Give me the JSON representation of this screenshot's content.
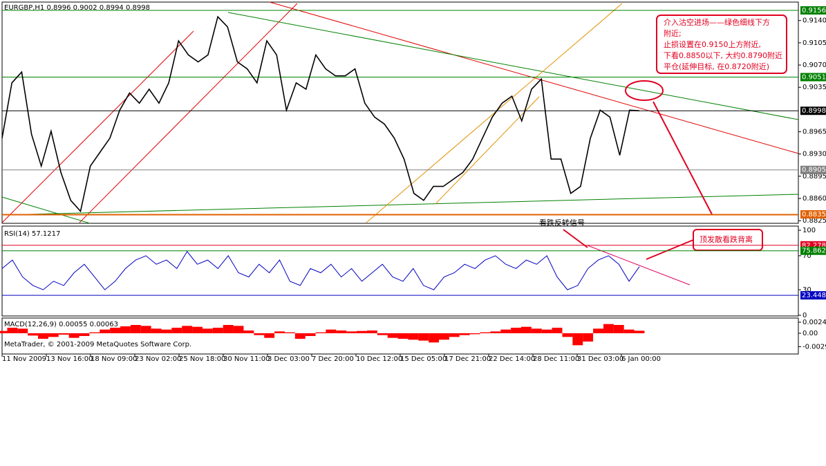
{
  "header": {
    "symbol_line": "EURGBP,H1  0.8996 0.9002 0.8994 0.8998"
  },
  "footer": "MetaTrader, © 2001-2009 MetaQuotes Software Corp.",
  "x_labels": [
    "11 Nov 2009",
    "13 Nov 16:00",
    "18 Nov 09:00",
    "23 Nov 02:00",
    "25 Nov 18:00",
    "30 Nov 11:00",
    "3 Dec 03:00",
    "7 Dec 20:00",
    "10 Dec 12:00",
    "15 Dec 05:00",
    "17 Dec 21:00",
    "22 Dec 14:00",
    "28 Dec 11:00",
    "31 Dec 03:00",
    "6 Jan 00:00"
  ],
  "annotations": {
    "trade_plan": [
      "介入沽空进场——绿色细线下方",
      "附近;",
      "止损设置在0.9150上方附近,",
      "下看0.8850以下, 大约0.8790附近",
      "平仓(延伸目标, 在0.8720附近)"
    ],
    "reversal_signal": "看跌反转信号",
    "divergence": "顶发散看跌背离"
  },
  "chart_data": [
    {
      "type": "line",
      "color": "#000000",
      "values": [
        0.8955,
        0.9042,
        0.9059,
        0.8961,
        0.8911,
        0.8966,
        0.8901,
        0.8857,
        0.884,
        0.8911,
        0.8933,
        0.8955,
        0.8999,
        0.9026,
        0.901,
        0.9032,
        0.901,
        0.9042,
        0.9108,
        0.9086,
        0.9075,
        0.9086,
        0.9146,
        0.913,
        0.9075,
        0.9064,
        0.9042,
        0.9108,
        0.9086,
        0.8999,
        0.9042,
        0.9032,
        0.9086,
        0.9064,
        0.9053,
        0.9053,
        0.9064,
        0.901,
        0.8988,
        0.8977,
        0.8955,
        0.8922,
        0.8868,
        0.8857,
        0.8879,
        0.8879,
        0.889,
        0.8901,
        0.8922,
        0.8955,
        0.8988,
        0.901,
        0.9021,
        0.8982,
        0.9032,
        0.9048,
        0.8922,
        0.8922,
        0.8868,
        0.8879,
        0.8955,
        0.8999,
        0.8988,
        0.8928,
        0.8999,
        0.8998
      ],
      "ylim": [
        0.8822,
        0.9168
      ],
      "yticks": [
        {
          "value": 0.914,
          "label": "0.9140"
        },
        {
          "value": 0.9105,
          "label": "0.9105"
        },
        {
          "value": 0.907,
          "label": "0.9070"
        },
        {
          "value": 0.9035,
          "label": "0.9035"
        },
        {
          "value": 0.8965,
          "label": "0.8965"
        },
        {
          "value": 0.893,
          "label": "0.8930"
        },
        {
          "value": 0.8895,
          "label": "0.8895"
        },
        {
          "value": 0.886,
          "label": "0.8860"
        },
        {
          "value": 0.8825,
          "label": "0.8825"
        }
      ],
      "levels": [
        {
          "value": 0.9156,
          "label": "0.9156",
          "color": "#008000"
        },
        {
          "value": 0.9051,
          "label": "0.9051",
          "color": "#008000"
        },
        {
          "value": 0.8998,
          "label": "0.8998",
          "color": "#000000"
        },
        {
          "value": 0.8905,
          "label": "0.8905",
          "color": "#808080"
        },
        {
          "value": 0.8835,
          "label": "0.8835",
          "color": "#e06000"
        }
      ]
    },
    {
      "type": "line",
      "title": "RSI(14) 57.1217",
      "color": "#0000c0",
      "values": [
        55,
        65,
        45,
        35,
        30,
        40,
        35,
        50,
        60,
        45,
        30,
        40,
        55,
        65,
        70,
        60,
        65,
        55,
        75,
        60,
        65,
        55,
        70,
        50,
        45,
        60,
        50,
        65,
        40,
        35,
        55,
        50,
        60,
        45,
        55,
        40,
        50,
        60,
        45,
        40,
        55,
        35,
        30,
        45,
        50,
        60,
        55,
        65,
        70,
        60,
        55,
        65,
        60,
        70,
        45,
        30,
        35,
        55,
        65,
        70,
        60,
        40,
        57.1217
      ],
      "ylim": [
        0,
        100
      ],
      "yticks": [
        0,
        30,
        70,
        100
      ],
      "levels": [
        {
          "value": 82.2785,
          "label": "82.2785",
          "color": "#e00020"
        },
        {
          "value": 75.8621,
          "label": "75.8621",
          "color": "#008000"
        },
        {
          "value": 23.4483,
          "label": "23.4483",
          "color": "#0000c0"
        }
      ]
    },
    {
      "type": "bar",
      "title": "MACD(12,26,9) 0.00055 0.00063",
      "color": "#ff0000",
      "values": [
        0.0005,
        0.0012,
        0.001,
        -0.0005,
        -0.0012,
        -0.0008,
        -0.0003,
        -0.001,
        -0.0006,
        0.0002,
        0.0008,
        0.0012,
        0.0015,
        0.0018,
        0.0016,
        0.001,
        0.0008,
        0.0012,
        0.0016,
        0.0014,
        0.001,
        0.0012,
        0.0018,
        0.0016,
        0.0006,
        -0.0004,
        -0.001,
        0.0004,
        0.0002,
        -0.0012,
        -0.0006,
        0.0002,
        0.0008,
        0.0006,
        0.0004,
        0.0005,
        0.0006,
        -0.0004,
        -0.001,
        -0.0012,
        -0.0014,
        -0.0016,
        -0.002,
        -0.0014,
        -0.0008,
        -0.0004,
        -0.0002,
        0.0002,
        0.0004,
        0.0008,
        0.0012,
        0.0014,
        0.001,
        0.0008,
        0.0012,
        -0.0008,
        -0.0026,
        -0.0018,
        0.001,
        0.002,
        0.0018,
        0.0008,
        0.00055
      ],
      "ylim": [
        -0.0045,
        0.0033
      ],
      "yticks": [
        0.0024,
        {
          "value": 0,
          "label": "0.00"
        },
        -0.00291
      ]
    }
  ]
}
